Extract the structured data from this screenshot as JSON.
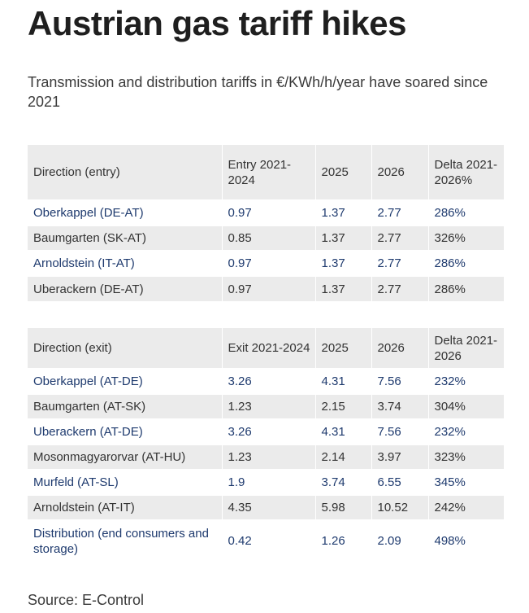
{
  "title": "Austrian gas tariff hikes",
  "subtitle": "Transmission and distribution tariffs in €/KWh/h/year have soared since 2021",
  "source": "Source: E-Control",
  "colors": {
    "link_text": "#1e3a6e",
    "stripe": "#ebebeb",
    "text": "#333333"
  },
  "chart_data": [
    {
      "type": "table",
      "columns": [
        "Direction (entry)",
        "Entry 2021-2024",
        "2025",
        "2026",
        "Delta 2021-2026%"
      ],
      "rows": [
        [
          "Oberkappel (DE-AT)",
          "0.97",
          "1.37",
          "2.77",
          "286%"
        ],
        [
          "Baumgarten (SK-AT)",
          "0.85",
          "1.37",
          "2.77",
          "326%"
        ],
        [
          "Arnoldstein (IT-AT)",
          "0.97",
          "1.37",
          "2.77",
          "286%"
        ],
        [
          "Uberackern (DE-AT)",
          "0.97",
          "1.37",
          "2.77",
          "286%"
        ]
      ]
    },
    {
      "type": "table",
      "columns": [
        "Direction (exit)",
        "Exit 2021-2024",
        "2025",
        "2026",
        "Delta 2021-2026"
      ],
      "rows": [
        [
          "Oberkappel (AT-DE)",
          "3.26",
          "4.31",
          "7.56",
          "232%"
        ],
        [
          "Baumgarten (AT-SK)",
          "1.23",
          "2.15",
          "3.74",
          "304%"
        ],
        [
          "Uberackern (AT-DE)",
          "3.26",
          "4.31",
          "7.56",
          "232%"
        ],
        [
          "Mosonmagyarorvar (AT-HU)",
          "1.23",
          "2.14",
          "3.97",
          "323%"
        ],
        [
          "Murfeld (AT-SL)",
          "1.9",
          "3.74",
          "6.55",
          "345%"
        ],
        [
          "Arnoldstein (AT-IT)",
          "4.35",
          "5.98",
          "10.52",
          "242%"
        ],
        [
          "Distribution (end consumers and storage)",
          "0.42",
          "1.26",
          "2.09",
          "498%"
        ]
      ]
    }
  ]
}
